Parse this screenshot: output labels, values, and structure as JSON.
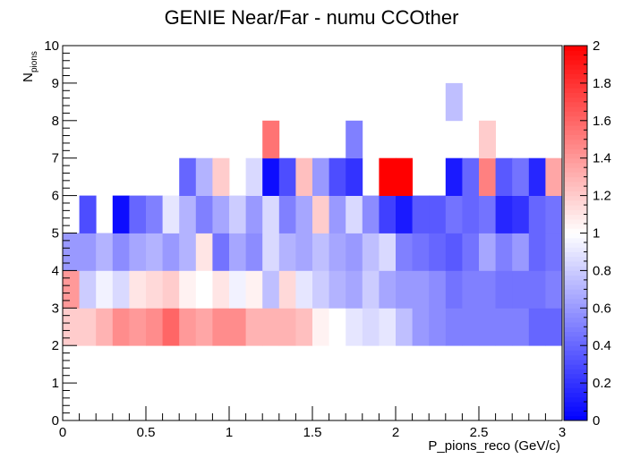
{
  "chart_data": {
    "type": "heatmap",
    "title": "GENIE Near/Far - numu CCOther",
    "xlabel": "P_pions_reco (GeV/c)",
    "ylabel_main": "N",
    "ylabel_sub": "pions",
    "xlim": [
      0,
      3
    ],
    "ylim": [
      0,
      10
    ],
    "zlim": [
      0,
      2
    ],
    "x_bin_width": 0.1,
    "y_bin_width": 1,
    "x_ticks": [
      "0",
      "0.5",
      "1",
      "1.5",
      "2",
      "2.5",
      "3"
    ],
    "y_ticks": [
      "0",
      "1",
      "2",
      "3",
      "4",
      "5",
      "6",
      "7",
      "8",
      "9",
      "10"
    ],
    "z_ticks": [
      "0",
      "0.2",
      "0.4",
      "0.6",
      "0.8",
      "1",
      "1.2",
      "1.4",
      "1.6",
      "1.8",
      "2"
    ],
    "palette": {
      "low": "#0000ff",
      "mid": "#ffffff",
      "high": "#ff0000"
    },
    "rows": [
      {
        "y_low": 2,
        "y_high": 3,
        "x_low": [
          0.0,
          0.1,
          0.2,
          0.3,
          0.4,
          0.5,
          0.6,
          0.7,
          0.8,
          0.9,
          1.0,
          1.1,
          1.2,
          1.3,
          1.4,
          1.5,
          1.6,
          1.7,
          1.8,
          1.9,
          2.0,
          2.1,
          2.2,
          2.3,
          2.4,
          2.5,
          2.6,
          2.7,
          2.8,
          2.9
        ],
        "values": [
          1.2,
          1.2,
          1.3,
          1.45,
          1.4,
          1.45,
          1.6,
          1.4,
          1.35,
          1.45,
          1.45,
          1.3,
          1.3,
          1.3,
          1.25,
          1.05,
          1.0,
          0.9,
          0.85,
          0.9,
          0.75,
          0.6,
          0.55,
          0.5,
          0.5,
          0.5,
          0.5,
          0.5,
          0.4,
          0.4
        ]
      },
      {
        "y_low": 3,
        "y_high": 4,
        "x_low": [
          0.0,
          0.1,
          0.2,
          0.3,
          0.4,
          0.5,
          0.6,
          0.7,
          0.8,
          0.9,
          1.0,
          1.1,
          1.2,
          1.3,
          1.4,
          1.5,
          1.6,
          1.7,
          1.8,
          1.9,
          2.0,
          2.1,
          2.2,
          2.3,
          2.4,
          2.5,
          2.6,
          2.7,
          2.8,
          2.9
        ],
        "values": [
          1.4,
          0.8,
          0.95,
          0.85,
          1.1,
          1.15,
          1.2,
          1.05,
          1.0,
          1.1,
          0.95,
          1.05,
          0.75,
          1.15,
          0.9,
          0.8,
          0.7,
          0.65,
          0.8,
          0.65,
          0.6,
          0.6,
          0.55,
          0.45,
          0.5,
          0.5,
          0.45,
          0.45,
          0.45,
          0.5
        ]
      },
      {
        "y_low": 4,
        "y_high": 5,
        "x_low": [
          0.0,
          0.1,
          0.2,
          0.3,
          0.4,
          0.5,
          0.6,
          0.7,
          0.8,
          0.9,
          1.0,
          1.1,
          1.2,
          1.3,
          1.4,
          1.5,
          1.6,
          1.7,
          1.8,
          1.9,
          2.0,
          2.1,
          2.2,
          2.3,
          2.4,
          2.5,
          2.6,
          2.7,
          2.8,
          2.9
        ],
        "values": [
          0.6,
          0.6,
          0.7,
          0.55,
          0.65,
          0.7,
          0.6,
          0.7,
          1.1,
          0.45,
          0.65,
          0.55,
          0.85,
          0.7,
          0.65,
          0.75,
          0.65,
          0.6,
          0.75,
          0.85,
          0.5,
          0.45,
          0.4,
          0.35,
          0.45,
          0.65,
          0.5,
          0.6,
          0.4,
          0.45
        ]
      },
      {
        "y_low": 5,
        "y_high": 6,
        "x_low": [
          0.1,
          0.3,
          0.4,
          0.5,
          0.6,
          0.7,
          0.8,
          0.9,
          1.0,
          1.1,
          1.2,
          1.3,
          1.4,
          1.5,
          1.6,
          1.7,
          1.8,
          1.9,
          2.0,
          2.1,
          2.2,
          2.3,
          2.4,
          2.5,
          2.6,
          2.7,
          2.8,
          2.9
        ],
        "values": [
          0.3,
          0.05,
          0.4,
          0.5,
          0.9,
          0.7,
          0.5,
          0.65,
          0.8,
          0.6,
          0.85,
          0.5,
          0.65,
          1.2,
          0.6,
          0.85,
          0.55,
          0.25,
          0.1,
          0.35,
          0.35,
          0.45,
          0.4,
          0.45,
          0.15,
          0.2,
          0.4,
          0.45
        ]
      },
      {
        "y_low": 6,
        "y_high": 7,
        "x_low": [
          0.7,
          0.8,
          0.9,
          1.1,
          1.2,
          1.3,
          1.4,
          1.5,
          1.6,
          1.7,
          1.9,
          2.0,
          2.3,
          2.4,
          2.5,
          2.6,
          2.7,
          2.8,
          2.9
        ],
        "values": [
          0.4,
          0.7,
          1.2,
          0.85,
          0.05,
          0.3,
          1.25,
          0.6,
          0.3,
          0.2,
          2.0,
          2.0,
          0.1,
          0.4,
          1.5,
          0.35,
          0.45,
          0.15,
          1.35
        ]
      },
      {
        "y_low": 7,
        "y_high": 8,
        "x_low": [
          1.2,
          1.7,
          2.5
        ],
        "values": [
          1.55,
          0.5,
          1.2
        ]
      },
      {
        "y_low": 8,
        "y_high": 9,
        "x_low": [
          2.3
        ],
        "values": [
          0.75
        ]
      }
    ]
  }
}
